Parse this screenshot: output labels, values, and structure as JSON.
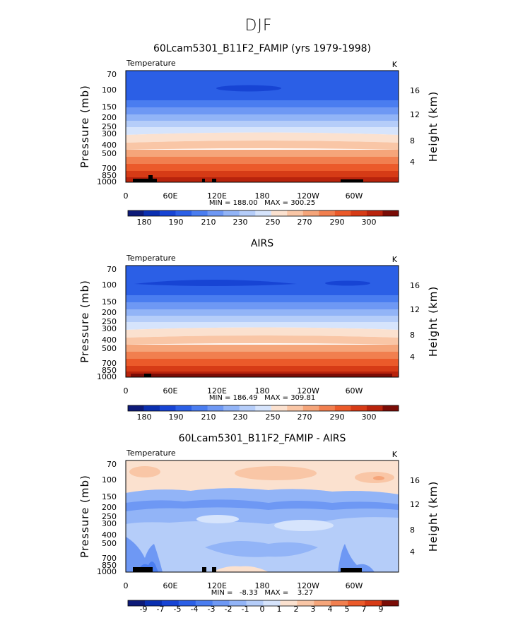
{
  "figure": {
    "season_title": "DJF"
  },
  "chart_data": [
    {
      "type": "heatmap",
      "title": "60Lcam5301_B11F2_FAMIP (yrs 1979-1998)",
      "left_label": "Temperature",
      "right_label": "K",
      "xlabel": "",
      "ylabel": "Pressure (mb)",
      "y2label": "Height (km)",
      "xticks": [
        "0",
        "60E",
        "120E",
        "180",
        "120W",
        "60W"
      ],
      "yticks": [
        "70",
        "100",
        "150",
        "200",
        "250",
        "300",
        "400",
        "500",
        "700",
        "850",
        "1000"
      ],
      "y2ticks": [
        "16",
        "12",
        "8",
        "4"
      ],
      "min_max_text": "MIN = 188.00   MAX = 300.25",
      "min": 188.0,
      "max": 300.25,
      "colorbar_labels": [
        "180",
        "190",
        "210",
        "230",
        "250",
        "270",
        "290",
        "300"
      ]
    },
    {
      "type": "heatmap",
      "title": "AIRS",
      "left_label": "Temperature",
      "right_label": "K",
      "xlabel": "",
      "ylabel": "Pressure (mb)",
      "y2label": "Height (km)",
      "xticks": [
        "0",
        "60E",
        "120E",
        "180",
        "120W",
        "60W"
      ],
      "yticks": [
        "70",
        "100",
        "150",
        "200",
        "250",
        "300",
        "400",
        "500",
        "700",
        "850",
        "1000"
      ],
      "y2ticks": [
        "16",
        "12",
        "8",
        "4"
      ],
      "min_max_text": "MIN = 186.49   MAX = 309.81",
      "min": 186.49,
      "max": 309.81,
      "colorbar_labels": [
        "180",
        "190",
        "210",
        "230",
        "250",
        "270",
        "290",
        "300"
      ]
    },
    {
      "type": "heatmap",
      "title": "60Lcam5301_B11F2_FAMIP - AIRS",
      "left_label": "Temperature",
      "right_label": "K",
      "xlabel": "",
      "ylabel": "Pressure (mb)",
      "y2label": "Height (km)",
      "xticks": [
        "0",
        "60E",
        "120E",
        "180",
        "120W",
        "60W"
      ],
      "yticks": [
        "70",
        "100",
        "150",
        "200",
        "250",
        "300",
        "400",
        "500",
        "700",
        "850",
        "1000"
      ],
      "y2ticks": [
        "16",
        "12",
        "8",
        "4"
      ],
      "min_max_text": "MIN =   -8.33   MAX =    3.27",
      "min": -8.33,
      "max": 3.27,
      "colorbar_labels": [
        "-9",
        "-7",
        "-5",
        "-4",
        "-3",
        "-2",
        "-1",
        "0",
        "1",
        "2",
        "3",
        "4",
        "5",
        "7",
        "9"
      ]
    }
  ],
  "colors": {
    "temperature_scale": [
      "#0d1a78",
      "#0a2fb0",
      "#1744d4",
      "#2b5fe6",
      "#4a7df0",
      "#6e98f4",
      "#92b4f7",
      "#b5cdf9",
      "#d6e4fc",
      "#fbe1cf",
      "#f9c6a6",
      "#f5a57a",
      "#f17f4f",
      "#eb5a2a",
      "#d63b16",
      "#b8230c",
      "#7a0c06"
    ],
    "difference_scale": [
      "#0d1a78",
      "#0a2fb0",
      "#1744d4",
      "#2b5fe6",
      "#4a7df0",
      "#6e98f4",
      "#92b4f7",
      "#b5cdf9",
      "#d6e4fc",
      "#fbe1cf",
      "#f9c6a6",
      "#f5a57a",
      "#f17f4f",
      "#eb5a2a",
      "#d63b16",
      "#7a0c06"
    ]
  }
}
